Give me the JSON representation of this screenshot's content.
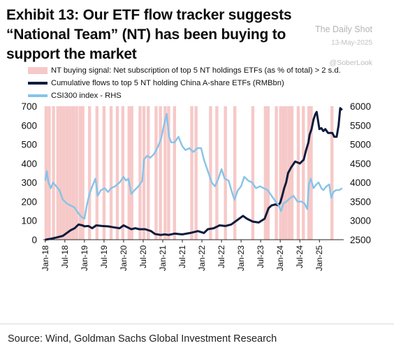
{
  "title": "Exhibit 13: Our ETF flow tracker suggests “National Team” (NT) has been buying to support the market",
  "watermarks": {
    "brand": "The Daily Shot",
    "date": "13-May-2025",
    "handle": "@SoberLook"
  },
  "source": "Source: Wind, Goldman Sachs Global Investment Research",
  "chart_data": {
    "type": "line",
    "x_ticks": [
      "Jan-18",
      "Jul-18",
      "Jan-19",
      "Jul-19",
      "Jan-20",
      "Jul-20",
      "Jan-21",
      "Jul-21",
      "Jan-22",
      "Jul-22",
      "Jan-23",
      "Jul-23",
      "Jan-24",
      "Jul-24",
      "Jan-25"
    ],
    "x_range": [
      2017.95,
      2025.62
    ],
    "y_left": {
      "range": [
        0,
        700
      ],
      "ticks": [
        "0",
        "100",
        "200",
        "300",
        "400",
        "500",
        "600",
        "700"
      ]
    },
    "y_right": {
      "range": [
        2500,
        6000
      ],
      "ticks": [
        "2500",
        "3000",
        "3500",
        "4000",
        "4500",
        "5000",
        "5500",
        "6000"
      ]
    },
    "legend": [
      {
        "label": "NT buying signal: Net subscription of top 5 NT holdings ETFs (as % of total) > 2 s.d.",
        "color": "#f6c9c8",
        "kind": "bar"
      },
      {
        "label": "Cumulative flows to top 5 NT holding China A-share ETFs (RMBbn)",
        "color": "#0d1b3d",
        "kind": "line"
      },
      {
        "label": "CSI300 index - RHS",
        "color": "#86c3ea",
        "kind": "line"
      }
    ],
    "signal_dates": [
      2018.02,
      2018.1,
      2018.21,
      2018.32,
      2018.4,
      2018.48,
      2018.56,
      2018.64,
      2018.72,
      2018.8,
      2018.89,
      2018.96,
      2019.13,
      2019.32,
      2019.5,
      2019.68,
      2019.84,
      2019.98,
      2020.14,
      2020.21,
      2020.42,
      2020.52,
      2020.63,
      2020.83,
      2020.94,
      2021.06,
      2021.15,
      2021.3,
      2021.74,
      2021.85,
      2022.22,
      2022.38,
      2022.6,
      2022.84,
      2023.3,
      2023.62,
      2023.69,
      2023.9,
      2024.01,
      2024.08,
      2024.15,
      2024.23,
      2024.3,
      2024.46,
      2024.59,
      2024.73,
      2024.79,
      2025.32
    ],
    "series": [
      {
        "name": "Cumulative flows to top 5 NT holding China A-share ETFs (RMBbn)",
        "axis": "left",
        "color": "#0d1b3d",
        "points": [
          [
            2018.0,
            0
          ],
          [
            2018.15,
            5
          ],
          [
            2018.3,
            12
          ],
          [
            2018.45,
            20
          ],
          [
            2018.55,
            35
          ],
          [
            2018.65,
            50
          ],
          [
            2018.75,
            60
          ],
          [
            2018.85,
            80
          ],
          [
            2018.95,
            75
          ],
          [
            2019.0,
            70
          ],
          [
            2019.1,
            72
          ],
          [
            2019.2,
            60
          ],
          [
            2019.3,
            75
          ],
          [
            2019.45,
            72
          ],
          [
            2019.6,
            70
          ],
          [
            2019.75,
            65
          ],
          [
            2019.9,
            60
          ],
          [
            2020.0,
            75
          ],
          [
            2020.1,
            65
          ],
          [
            2020.2,
            55
          ],
          [
            2020.3,
            60
          ],
          [
            2020.4,
            55
          ],
          [
            2020.55,
            55
          ],
          [
            2020.7,
            45
          ],
          [
            2020.8,
            30
          ],
          [
            2020.95,
            25
          ],
          [
            2021.05,
            28
          ],
          [
            2021.15,
            25
          ],
          [
            2021.3,
            32
          ],
          [
            2021.5,
            28
          ],
          [
            2021.7,
            35
          ],
          [
            2021.9,
            45
          ],
          [
            2022.05,
            35
          ],
          [
            2022.15,
            55
          ],
          [
            2022.3,
            60
          ],
          [
            2022.45,
            75
          ],
          [
            2022.6,
            72
          ],
          [
            2022.75,
            80
          ],
          [
            2022.85,
            95
          ],
          [
            2022.95,
            110
          ],
          [
            2023.05,
            125
          ],
          [
            2023.15,
            110
          ],
          [
            2023.3,
            95
          ],
          [
            2023.45,
            90
          ],
          [
            2023.6,
            110
          ],
          [
            2023.7,
            165
          ],
          [
            2023.78,
            180
          ],
          [
            2023.88,
            185
          ],
          [
            2023.95,
            180
          ],
          [
            2024.0,
            195
          ],
          [
            2024.05,
            230
          ],
          [
            2024.1,
            270
          ],
          [
            2024.15,
            300
          ],
          [
            2024.2,
            350
          ],
          [
            2024.28,
            380
          ],
          [
            2024.38,
            410
          ],
          [
            2024.5,
            400
          ],
          [
            2024.6,
            420
          ],
          [
            2024.66,
            470
          ],
          [
            2024.72,
            510
          ],
          [
            2024.75,
            550
          ],
          [
            2024.8,
            580
          ],
          [
            2024.85,
            630
          ],
          [
            2024.9,
            660
          ],
          [
            2024.93,
            670
          ],
          [
            2025.0,
            580
          ],
          [
            2025.05,
            585
          ],
          [
            2025.1,
            570
          ],
          [
            2025.15,
            580
          ],
          [
            2025.22,
            560
          ],
          [
            2025.28,
            560
          ],
          [
            2025.33,
            560
          ],
          [
            2025.38,
            540
          ],
          [
            2025.44,
            540
          ],
          [
            2025.49,
            600
          ],
          [
            2025.53,
            690
          ],
          [
            2025.58,
            680
          ]
        ]
      },
      {
        "name": "CSI300 index - RHS",
        "axis": "right",
        "color": "#86c3ea",
        "points": [
          [
            2018.0,
            4050
          ],
          [
            2018.04,
            4300
          ],
          [
            2018.08,
            4000
          ],
          [
            2018.14,
            3850
          ],
          [
            2018.2,
            4000
          ],
          [
            2018.28,
            3900
          ],
          [
            2018.36,
            3800
          ],
          [
            2018.45,
            3550
          ],
          [
            2018.55,
            3450
          ],
          [
            2018.64,
            3400
          ],
          [
            2018.74,
            3350
          ],
          [
            2018.84,
            3200
          ],
          [
            2018.92,
            3100
          ],
          [
            2019.0,
            3050
          ],
          [
            2019.06,
            3400
          ],
          [
            2019.13,
            3700
          ],
          [
            2019.2,
            3900
          ],
          [
            2019.28,
            4100
          ],
          [
            2019.34,
            3650
          ],
          [
            2019.42,
            3800
          ],
          [
            2019.52,
            3850
          ],
          [
            2019.6,
            3750
          ],
          [
            2019.68,
            3850
          ],
          [
            2019.78,
            3900
          ],
          [
            2019.9,
            4000
          ],
          [
            2020.0,
            4150
          ],
          [
            2020.06,
            4050
          ],
          [
            2020.12,
            4100
          ],
          [
            2020.2,
            3700
          ],
          [
            2020.28,
            3800
          ],
          [
            2020.38,
            3900
          ],
          [
            2020.48,
            4050
          ],
          [
            2020.52,
            4600
          ],
          [
            2020.6,
            4700
          ],
          [
            2020.68,
            4650
          ],
          [
            2020.78,
            4750
          ],
          [
            2020.88,
            4950
          ],
          [
            2020.96,
            5150
          ],
          [
            2021.04,
            5550
          ],
          [
            2021.1,
            5800
          ],
          [
            2021.16,
            5200
          ],
          [
            2021.22,
            5050
          ],
          [
            2021.3,
            5050
          ],
          [
            2021.4,
            5200
          ],
          [
            2021.5,
            4950
          ],
          [
            2021.58,
            4850
          ],
          [
            2021.68,
            4900
          ],
          [
            2021.78,
            4800
          ],
          [
            2021.88,
            4900
          ],
          [
            2021.98,
            4900
          ],
          [
            2022.05,
            4600
          ],
          [
            2022.15,
            4300
          ],
          [
            2022.25,
            4000
          ],
          [
            2022.33,
            3900
          ],
          [
            2022.42,
            4100
          ],
          [
            2022.5,
            4350
          ],
          [
            2022.58,
            4100
          ],
          [
            2022.68,
            4050
          ],
          [
            2022.78,
            3700
          ],
          [
            2022.83,
            3550
          ],
          [
            2022.92,
            3800
          ],
          [
            2023.0,
            3900
          ],
          [
            2023.08,
            4150
          ],
          [
            2023.18,
            4050
          ],
          [
            2023.28,
            4000
          ],
          [
            2023.38,
            3850
          ],
          [
            2023.48,
            3900
          ],
          [
            2023.58,
            3850
          ],
          [
            2023.68,
            3800
          ],
          [
            2023.78,
            3650
          ],
          [
            2023.88,
            3500
          ],
          [
            2023.96,
            3400
          ],
          [
            2024.02,
            3250
          ],
          [
            2024.08,
            3450
          ],
          [
            2024.16,
            3500
          ],
          [
            2024.26,
            3600
          ],
          [
            2024.34,
            3650
          ],
          [
            2024.44,
            3500
          ],
          [
            2024.54,
            3500
          ],
          [
            2024.62,
            3450
          ],
          [
            2024.69,
            3300
          ],
          [
            2024.73,
            3950
          ],
          [
            2024.78,
            4100
          ],
          [
            2024.85,
            3850
          ],
          [
            2024.92,
            3950
          ],
          [
            2024.98,
            4000
          ],
          [
            2025.05,
            3850
          ],
          [
            2025.1,
            3800
          ],
          [
            2025.18,
            3900
          ],
          [
            2025.25,
            3950
          ],
          [
            2025.3,
            3600
          ],
          [
            2025.36,
            3750
          ],
          [
            2025.42,
            3800
          ],
          [
            2025.5,
            3800
          ],
          [
            2025.58,
            3850
          ]
        ]
      }
    ]
  }
}
